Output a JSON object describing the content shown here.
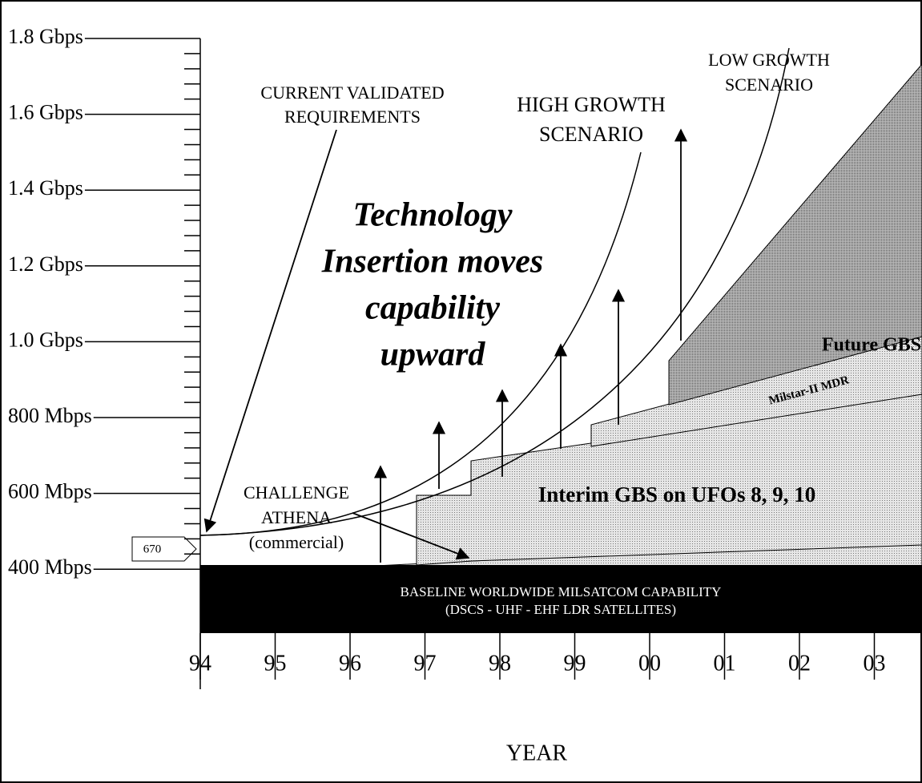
{
  "y_axis": {
    "labels": [
      "1.8 Gbps",
      "1.6 Gbps",
      "1.4 Gbps",
      "1.2 Gbps",
      "1.0 Gbps",
      "800 Mbps",
      "600 Mbps",
      "400 Mbps"
    ]
  },
  "x_axis": {
    "labels": [
      "94",
      "95",
      "96",
      "97",
      "98",
      "99",
      "00",
      "01",
      "02",
      "03"
    ],
    "title": "YEAR"
  },
  "marker": "670",
  "baseline": [
    "BASELINE WORLDWIDE MILSATCOM CAPABILITY",
    "(DSCS - UHF - EHF LDR SATELLITES)"
  ],
  "regions": {
    "future": "Future GBS",
    "milstar": "Milstar-II MDR",
    "interim": "Interim GBS on UFOs 8, 9, 10"
  },
  "annotations": {
    "current": [
      "CURRENT VALIDATED",
      "REQUIREMENTS"
    ],
    "high": [
      "HIGH GROWTH",
      "SCENARIO"
    ],
    "low": [
      "LOW GROWTH",
      "SCENARIO"
    ],
    "technology": [
      "Technology",
      "Insertion moves",
      "capability",
      "upward"
    ],
    "challenge": [
      "CHALLENGE",
      "ATHENA",
      "(commercial)"
    ]
  }
}
